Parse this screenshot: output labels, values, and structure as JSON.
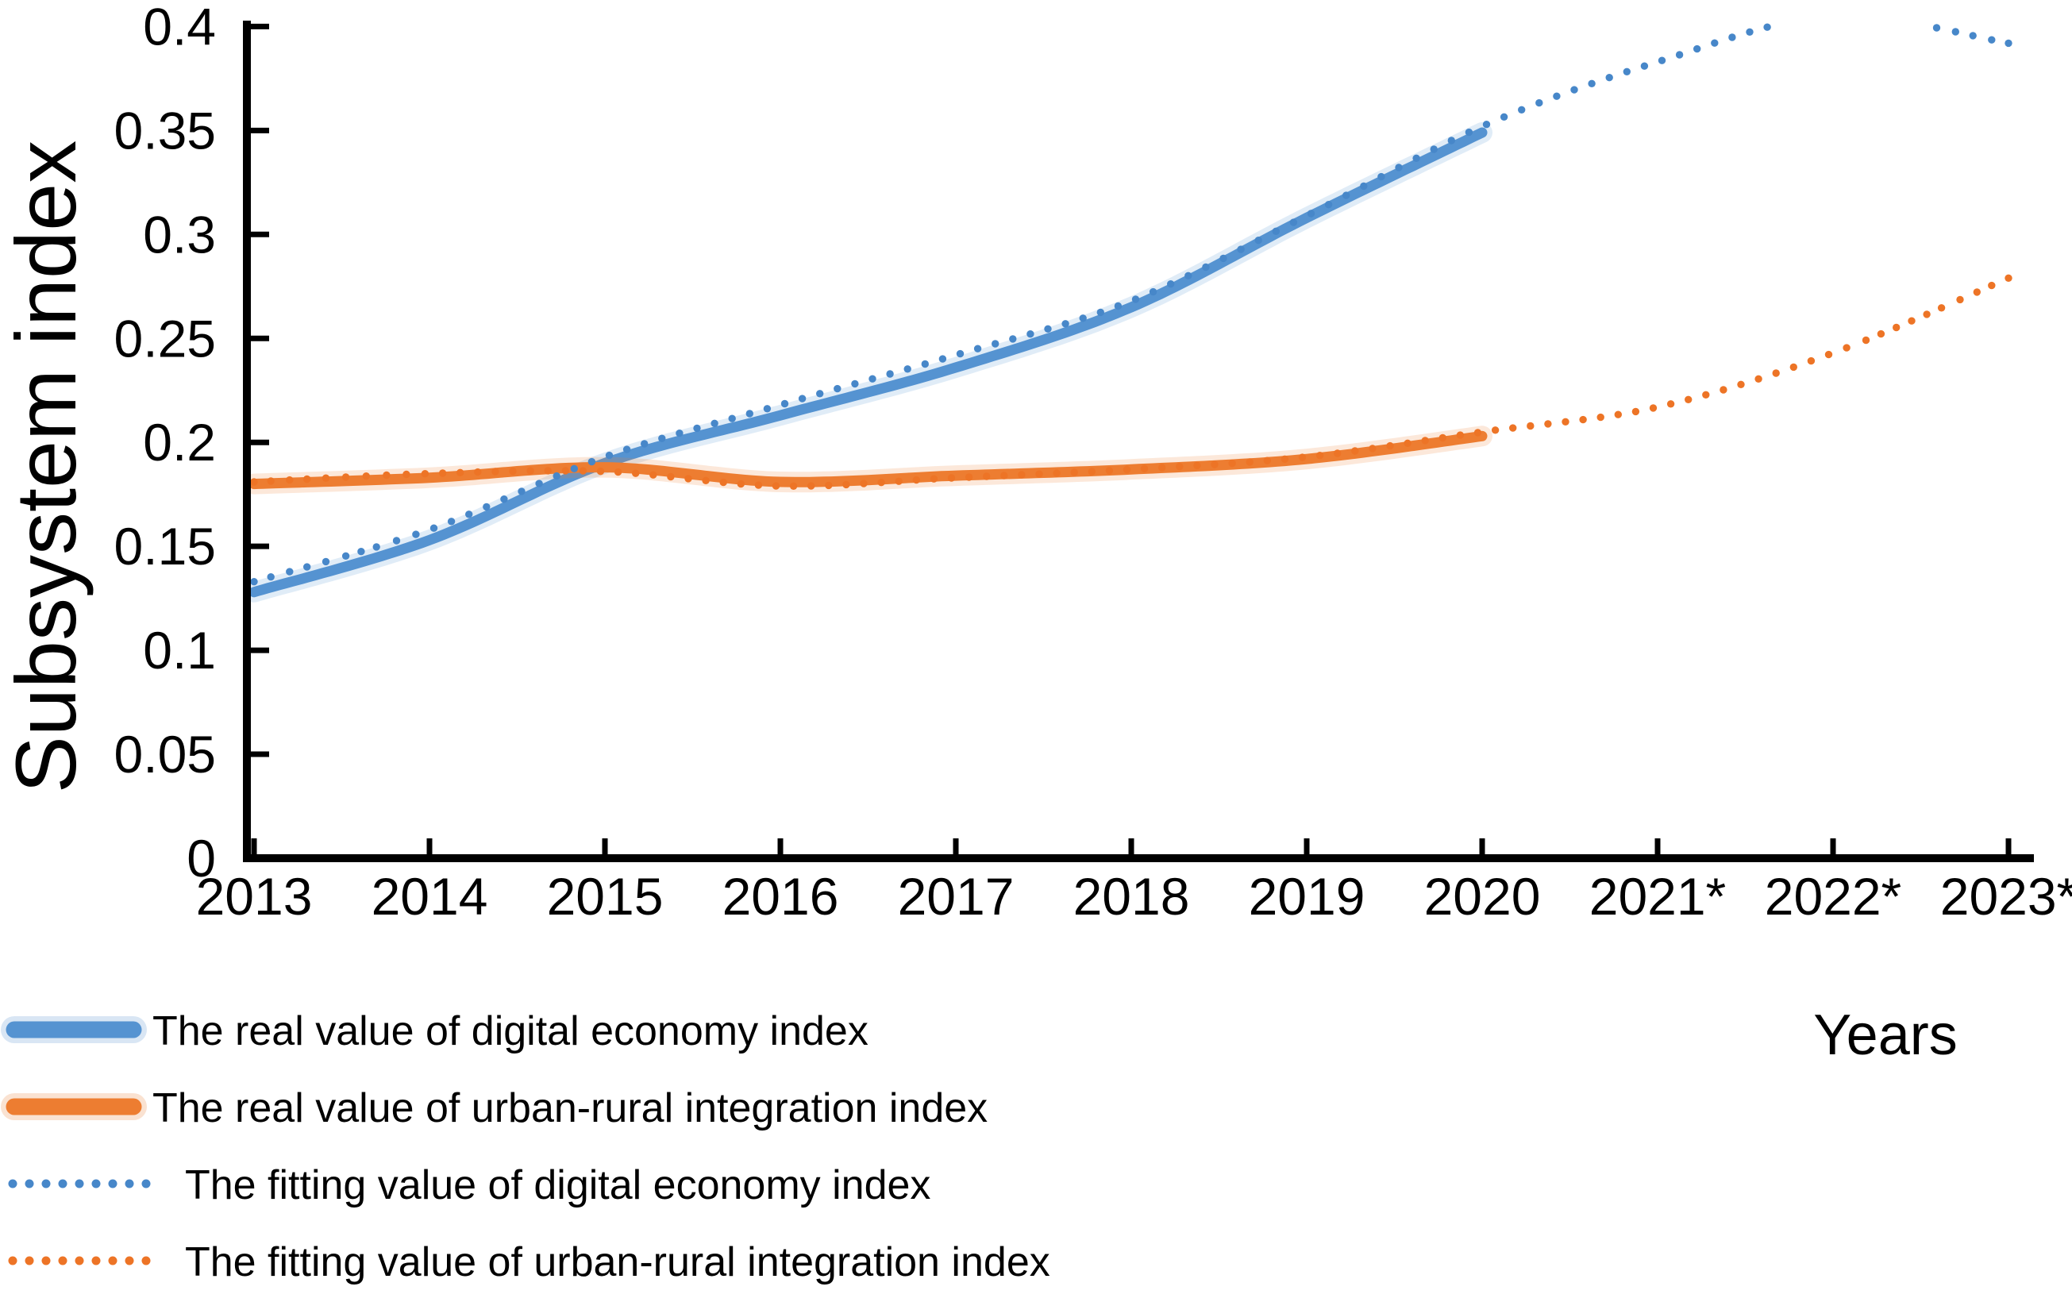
{
  "figure": {
    "background": "#ffffff",
    "y_axis_title": "Subsystem index",
    "x_axis_title": "Years",
    "y_ticks": [
      "0",
      "0.05",
      "0.1",
      "0.15",
      "0.2",
      "0.25",
      "0.3",
      "0.35",
      "0.4"
    ],
    "x_ticks": [
      "2013",
      "2014",
      "2015",
      "2016",
      "2017",
      "2018",
      "2019",
      "2020",
      "2021*",
      "2022*",
      "2023*"
    ],
    "colors": {
      "digital_real": "#5593D1",
      "digital_fit": "#4787C9",
      "urban_real": "#ED7D31",
      "urban_fit": "#ED7426",
      "axis": "#000000",
      "text": "#000000"
    }
  },
  "legend": {
    "items": [
      {
        "label": "The real value of digital economy index",
        "style": "solid",
        "color_key": "digital_real"
      },
      {
        "label": "The real value of urban-rural integration index",
        "style": "solid",
        "color_key": "urban_real"
      },
      {
        "label": "The fitting value of digital economy index",
        "style": "dotted",
        "color_key": "digital_fit"
      },
      {
        "label": "The fitting value of urban-rural integration index",
        "style": "dotted",
        "color_key": "urban_fit"
      }
    ]
  },
  "chart_data": {
    "type": "line",
    "title": "",
    "xlabel": "Years",
    "ylabel": "Subsystem index",
    "ylim": [
      0,
      0.4
    ],
    "y_tick_step": 0.05,
    "x_categories": [
      2013,
      2014,
      2015,
      2016,
      2017,
      2018,
      2019,
      2020,
      2021,
      2022,
      2023
    ],
    "predicted_years_marked_with_asterisk": [
      2021,
      2022,
      2023
    ],
    "grid": false,
    "legend_position": "bottom-left",
    "series": [
      {
        "name": "The real value of digital economy index",
        "style": "solid",
        "color_key": "digital_real",
        "x": [
          2013,
          2014,
          2015,
          2016,
          2017,
          2018,
          2019,
          2020
        ],
        "values": [
          0.128,
          0.153,
          0.19,
          0.213,
          0.236,
          0.265,
          0.308,
          0.349
        ]
      },
      {
        "name": "The real value of urban-rural integration index",
        "style": "solid",
        "color_key": "urban_real",
        "x": [
          2013,
          2014,
          2015,
          2016,
          2017,
          2018,
          2019,
          2020
        ],
        "values": [
          0.18,
          0.183,
          0.188,
          0.181,
          0.184,
          0.187,
          0.192,
          0.203
        ]
      },
      {
        "name": "The fitting value of digital economy index",
        "style": "dotted",
        "color_key": "digital_fit",
        "x": [
          2013,
          2014,
          2015,
          2016,
          2017,
          2018,
          2019,
          2020,
          2021,
          2022,
          2023
        ],
        "values": [
          0.133,
          0.158,
          0.193,
          0.218,
          0.242,
          0.268,
          0.309,
          0.352,
          0.383,
          0.405,
          0.392
        ],
        "note": "segment above axis max 0.4 (approx 2021.6-2022.5) is clipped out of view"
      },
      {
        "name": "The fitting value of urban-rural integration index",
        "style": "dotted",
        "color_key": "urban_fit",
        "x": [
          2013,
          2014,
          2015,
          2016,
          2017,
          2018,
          2019,
          2020,
          2021,
          2022,
          2023
        ],
        "values": [
          0.181,
          0.185,
          0.186,
          0.179,
          0.183,
          0.187,
          0.193,
          0.205,
          0.217,
          0.243,
          0.279
        ]
      }
    ]
  }
}
